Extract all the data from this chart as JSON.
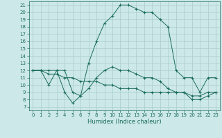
{
  "title": "",
  "xlabel": "Humidex (Indice chaleur)",
  "background_color": "#cce8e8",
  "grid_color": "#aacccc",
  "line_color": "#1a6b5a",
  "xlim": [
    -0.5,
    23.5
  ],
  "ylim": [
    6.5,
    21.5
  ],
  "xticks": [
    0,
    1,
    2,
    3,
    4,
    5,
    6,
    7,
    8,
    9,
    10,
    11,
    12,
    13,
    14,
    15,
    16,
    17,
    18,
    19,
    20,
    21,
    22,
    23
  ],
  "yticks": [
    7,
    8,
    9,
    10,
    11,
    12,
    13,
    14,
    15,
    16,
    17,
    18,
    19,
    20,
    21
  ],
  "series1": {
    "x": [
      0,
      1,
      2,
      3,
      4,
      5,
      6,
      7,
      8,
      9,
      10,
      11,
      12,
      13,
      14,
      15,
      16,
      17,
      18,
      19,
      20,
      21,
      22,
      23
    ],
    "y": [
      12,
      12,
      10,
      12,
      12,
      9,
      8.5,
      13,
      16,
      18.5,
      19.5,
      21,
      21,
      20.5,
      20,
      20,
      19,
      18,
      12,
      11,
      11,
      9,
      11,
      11
    ]
  },
  "series2": {
    "x": [
      0,
      1,
      2,
      3,
      4,
      5,
      6,
      7,
      8,
      9,
      10,
      11,
      12,
      13,
      14,
      15,
      16,
      17,
      18,
      19,
      20,
      21,
      22,
      23
    ],
    "y": [
      12,
      12,
      12,
      12,
      9,
      7.5,
      8.5,
      9.5,
      11,
      12,
      12.5,
      12,
      12,
      11.5,
      11,
      11,
      10.5,
      9.5,
      9,
      9,
      8,
      8,
      8.5,
      9
    ]
  },
  "series3": {
    "x": [
      0,
      1,
      2,
      3,
      4,
      5,
      6,
      7,
      8,
      9,
      10,
      11,
      12,
      13,
      14,
      15,
      16,
      17,
      18,
      19,
      20,
      21,
      22,
      23
    ],
    "y": [
      12,
      12,
      11.5,
      11.5,
      11,
      11,
      10.5,
      10.5,
      10.5,
      10,
      10,
      9.5,
      9.5,
      9.5,
      9,
      9,
      9,
      9,
      9,
      9,
      8.5,
      8.5,
      9,
      9
    ]
  },
  "tick_fontsize": 5,
  "xlabel_fontsize": 6,
  "figsize": [
    3.2,
    2.0
  ],
  "dpi": 100
}
